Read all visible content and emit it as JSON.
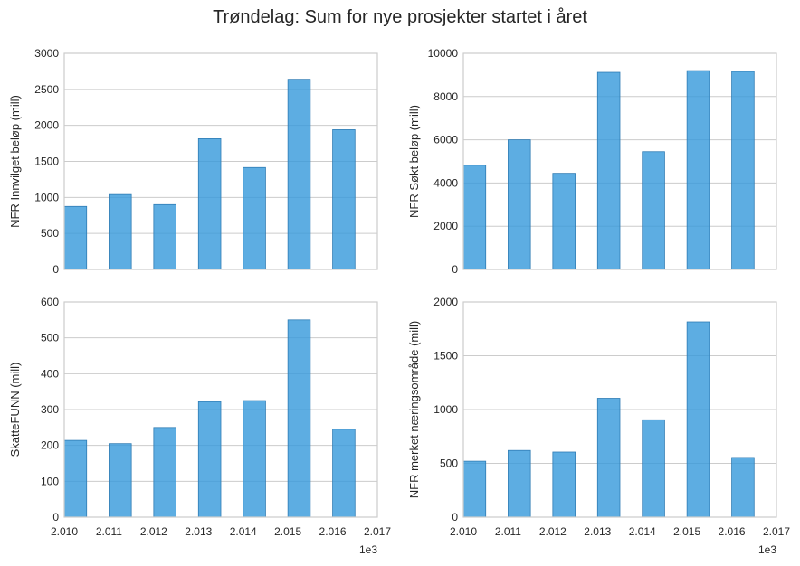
{
  "figure": {
    "title": "Trøndelag: Sum for nye prosjekter startet i året",
    "bar_color": "#3498db",
    "grid_color": "#cccccc",
    "spine_color": "#cccccc"
  },
  "chart_data": [
    {
      "type": "bar",
      "title": "",
      "ylabel": "NFR Innvilget beløp (mill)",
      "x": [
        2010,
        2011,
        2012,
        2013,
        2014,
        2015,
        2016
      ],
      "values": [
        875,
        1040,
        900,
        1815,
        1415,
        2640,
        1940
      ],
      "xlim": [
        2010,
        2017
      ],
      "ylim": [
        0,
        3000
      ],
      "yticks": [
        "0",
        "500",
        "1000",
        "1500",
        "2000",
        "2500",
        "3000"
      ],
      "xticks": [],
      "offset_label": "",
      "grid": "horizontal"
    },
    {
      "type": "bar",
      "title": "",
      "ylabel": "NFR Søkt beløp (mill)",
      "x": [
        2010,
        2011,
        2012,
        2013,
        2014,
        2015,
        2016
      ],
      "values": [
        4820,
        6000,
        4450,
        9120,
        5450,
        9200,
        9160
      ],
      "xlim": [
        2010,
        2017
      ],
      "ylim": [
        0,
        10000
      ],
      "yticks": [
        "0",
        "2000",
        "4000",
        "6000",
        "8000",
        "10000"
      ],
      "xticks": [],
      "offset_label": "",
      "grid": "horizontal"
    },
    {
      "type": "bar",
      "title": "",
      "ylabel": "SkatteFUNN (mill)",
      "x": [
        2010,
        2011,
        2012,
        2013,
        2014,
        2015,
        2016
      ],
      "values": [
        214,
        205,
        250,
        322,
        325,
        550,
        245
      ],
      "xlim": [
        2010,
        2017
      ],
      "ylim": [
        0,
        600
      ],
      "yticks": [
        "0",
        "100",
        "200",
        "300",
        "400",
        "500",
        "600"
      ],
      "xticks": [
        "2.010",
        "2.011",
        "2.012",
        "2.013",
        "2.014",
        "2.015",
        "2.016",
        "2.017"
      ],
      "offset_label": "1e3",
      "grid": "horizontal"
    },
    {
      "type": "bar",
      "title": "",
      "ylabel": "NFR merket næringsområde (mill)",
      "x": [
        2010,
        2011,
        2012,
        2013,
        2014,
        2015,
        2016
      ],
      "values": [
        520,
        620,
        605,
        1105,
        905,
        1815,
        555
      ],
      "xlim": [
        2010,
        2017
      ],
      "ylim": [
        0,
        2000
      ],
      "yticks": [
        "0",
        "500",
        "1000",
        "1500",
        "2000"
      ],
      "xticks": [
        "2.010",
        "2.011",
        "2.012",
        "2.013",
        "2.014",
        "2.015",
        "2.016",
        "2.017"
      ],
      "offset_label": "1e3",
      "grid": "horizontal"
    }
  ]
}
